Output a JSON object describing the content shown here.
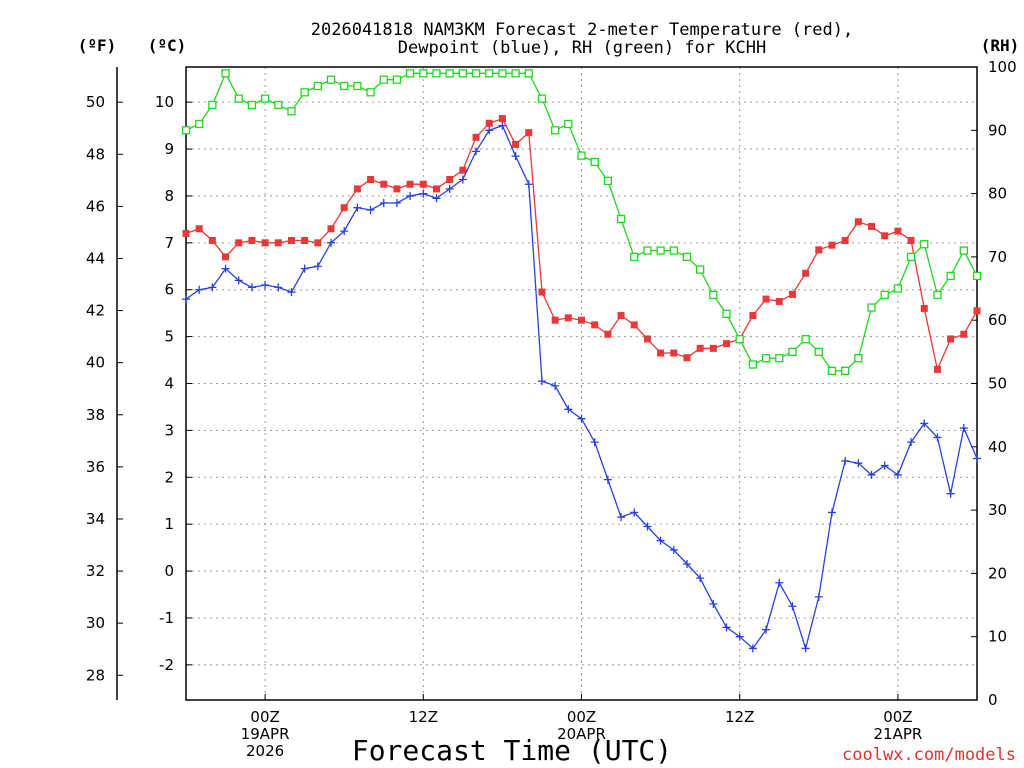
{
  "chart_data": {
    "type": "line",
    "title_line1": "2026041818 NAM3KM Forecast 2-meter Temperature (red),",
    "title_line2": "Dewpoint (blue), RH (green) for KCHH",
    "xlabel": "Forecast Time (UTC)",
    "credit": "coolwx.com/models",
    "unit_left_f": "(ºF)",
    "unit_left_c": "(ºC)",
    "unit_right": "(RH)",
    "x_range_hours": [
      0,
      60
    ],
    "c_range": [
      -2.75,
      10.75
    ],
    "rh_range": [
      0,
      100
    ],
    "f_ticks": [
      "28",
      "30",
      "32",
      "34",
      "36",
      "38",
      "40",
      "42",
      "44",
      "46",
      "48",
      "50"
    ],
    "c_ticks": [
      "-2",
      "-1",
      "0",
      "1",
      "2",
      "3",
      "4",
      "5",
      "6",
      "7",
      "8",
      "9",
      "10"
    ],
    "rh_ticks": [
      "0",
      "10",
      "20",
      "30",
      "40",
      "50",
      "60",
      "70",
      "80",
      "90",
      "100"
    ],
    "x_ticks": [
      {
        "hour": 6,
        "lines": [
          "00Z",
          "19APR",
          "2026"
        ]
      },
      {
        "hour": 18,
        "lines": [
          "12Z"
        ]
      },
      {
        "hour": 30,
        "lines": [
          "00Z",
          "20APR"
        ]
      },
      {
        "hour": 42,
        "lines": [
          "12Z"
        ]
      },
      {
        "hour": 54,
        "lines": [
          "00Z",
          "21APR"
        ]
      }
    ],
    "series": [
      {
        "name": "Temperature",
        "color": "#e83838",
        "marker": "filled-square",
        "unit": "C",
        "values": [
          7.2,
          7.3,
          7.05,
          6.7,
          7.0,
          7.05,
          7.0,
          7.0,
          7.05,
          7.05,
          7.0,
          7.3,
          7.75,
          8.15,
          8.35,
          8.25,
          8.15,
          8.25,
          8.25,
          8.15,
          8.35,
          8.55,
          9.25,
          9.55,
          9.65,
          9.1,
          9.35,
          5.95,
          5.35,
          5.4,
          5.35,
          5.25,
          5.05,
          5.45,
          5.25,
          4.95,
          4.65,
          4.65,
          4.55,
          4.75,
          4.75,
          4.85,
          4.95,
          5.45,
          5.8,
          5.75,
          5.9,
          6.35,
          6.85,
          6.95,
          7.05,
          7.45,
          7.35,
          7.15,
          7.25,
          7.05,
          5.6,
          4.3,
          4.95,
          5.05,
          5.55
        ]
      },
      {
        "name": "Dewpoint",
        "color": "#2840e0",
        "marker": "plus",
        "unit": "C",
        "values": [
          5.8,
          6.0,
          6.05,
          6.45,
          6.2,
          6.05,
          6.1,
          6.05,
          5.95,
          6.45,
          6.5,
          7.0,
          7.25,
          7.75,
          7.7,
          7.85,
          7.85,
          8.0,
          8.05,
          7.95,
          8.15,
          8.35,
          8.95,
          9.4,
          9.5,
          8.85,
          8.25,
          4.05,
          3.95,
          3.45,
          3.25,
          2.75,
          1.95,
          1.15,
          1.25,
          0.95,
          0.65,
          0.45,
          0.15,
          -0.15,
          -0.7,
          -1.2,
          -1.4,
          -1.65,
          -1.25,
          -0.25,
          -0.75,
          -1.65,
          -0.55,
          1.25,
          2.35,
          2.3,
          2.05,
          2.25,
          2.05,
          2.75,
          3.15,
          2.85,
          1.65,
          3.05,
          2.4
        ]
      },
      {
        "name": "RH",
        "color": "#22d622",
        "marker": "open-square",
        "unit": "%",
        "values": [
          90,
          91,
          94,
          99,
          95,
          94,
          95,
          94,
          93,
          96,
          97,
          98,
          97,
          97,
          96,
          98,
          98,
          99,
          99,
          99,
          99,
          99,
          99,
          99,
          99,
          99,
          99,
          95,
          90,
          91,
          86,
          85,
          82,
          76,
          70,
          71,
          71,
          71,
          70,
          68,
          64,
          61,
          57,
          53,
          54,
          54,
          55,
          57,
          55,
          52,
          52,
          54,
          62,
          64,
          65,
          70,
          72,
          64,
          67,
          71,
          67
        ]
      }
    ]
  }
}
